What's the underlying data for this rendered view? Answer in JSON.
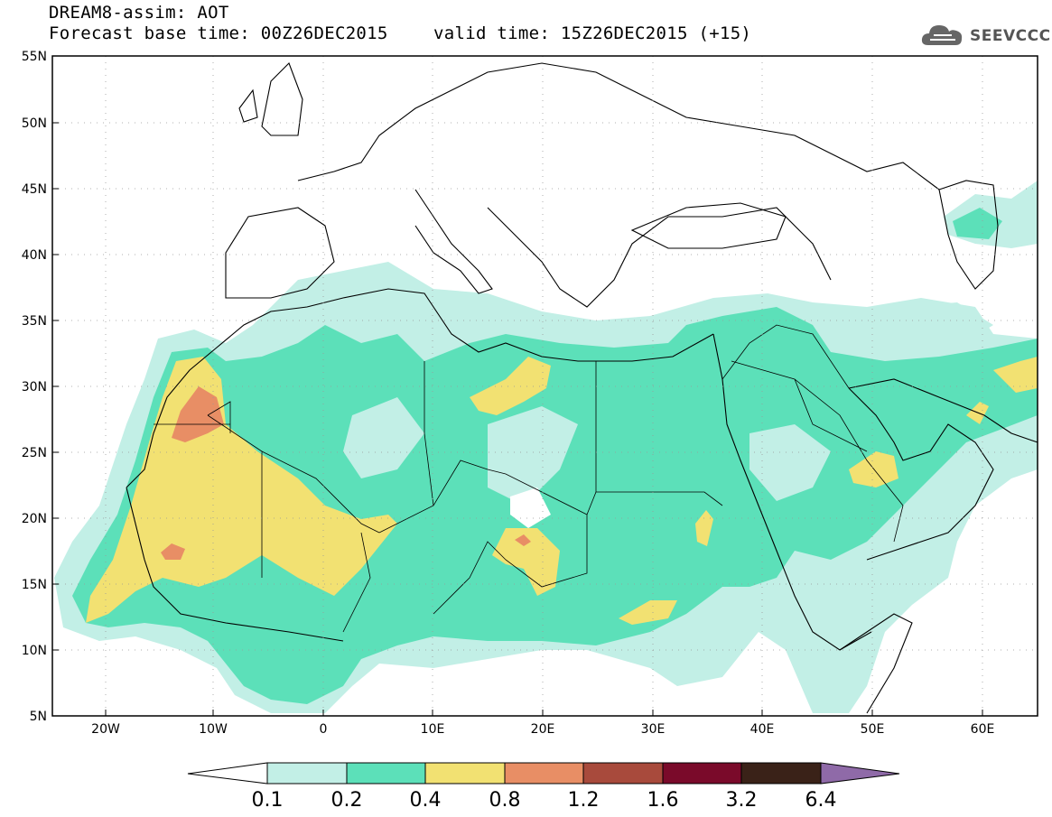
{
  "header": {
    "title": "DREAM8-assim: AOT",
    "base_time": "Forecast base time: 00Z26DEC2015",
    "valid_time": "valid time: 15Z26DEC2015 (+15)"
  },
  "logo": {
    "text": "SEEVCCC",
    "icon": "cloud-icon"
  },
  "map": {
    "lat_labels": [
      "55N",
      "50N",
      "45N",
      "40N",
      "35N",
      "30N",
      "25N",
      "20N",
      "15N",
      "10N",
      "5N"
    ],
    "lon_labels": [
      "20W",
      "10W",
      "0",
      "10E",
      "20E",
      "30E",
      "40E",
      "50E",
      "60E"
    ],
    "lon_range": [
      -25,
      65
    ],
    "lat_range": [
      5,
      55
    ],
    "grid": true
  },
  "colorbar": {
    "labels": [
      "0.1",
      "0.2",
      "0.4",
      "0.8",
      "1.2",
      "1.6",
      "3.2",
      "6.4"
    ],
    "colors": [
      "#ffffff",
      "#c2efe6",
      "#5ce0b9",
      "#f2e172",
      "#e88e65",
      "#a84a3c",
      "#7a0a2a",
      "#3a2218",
      "#8f6aa8"
    ]
  }
}
